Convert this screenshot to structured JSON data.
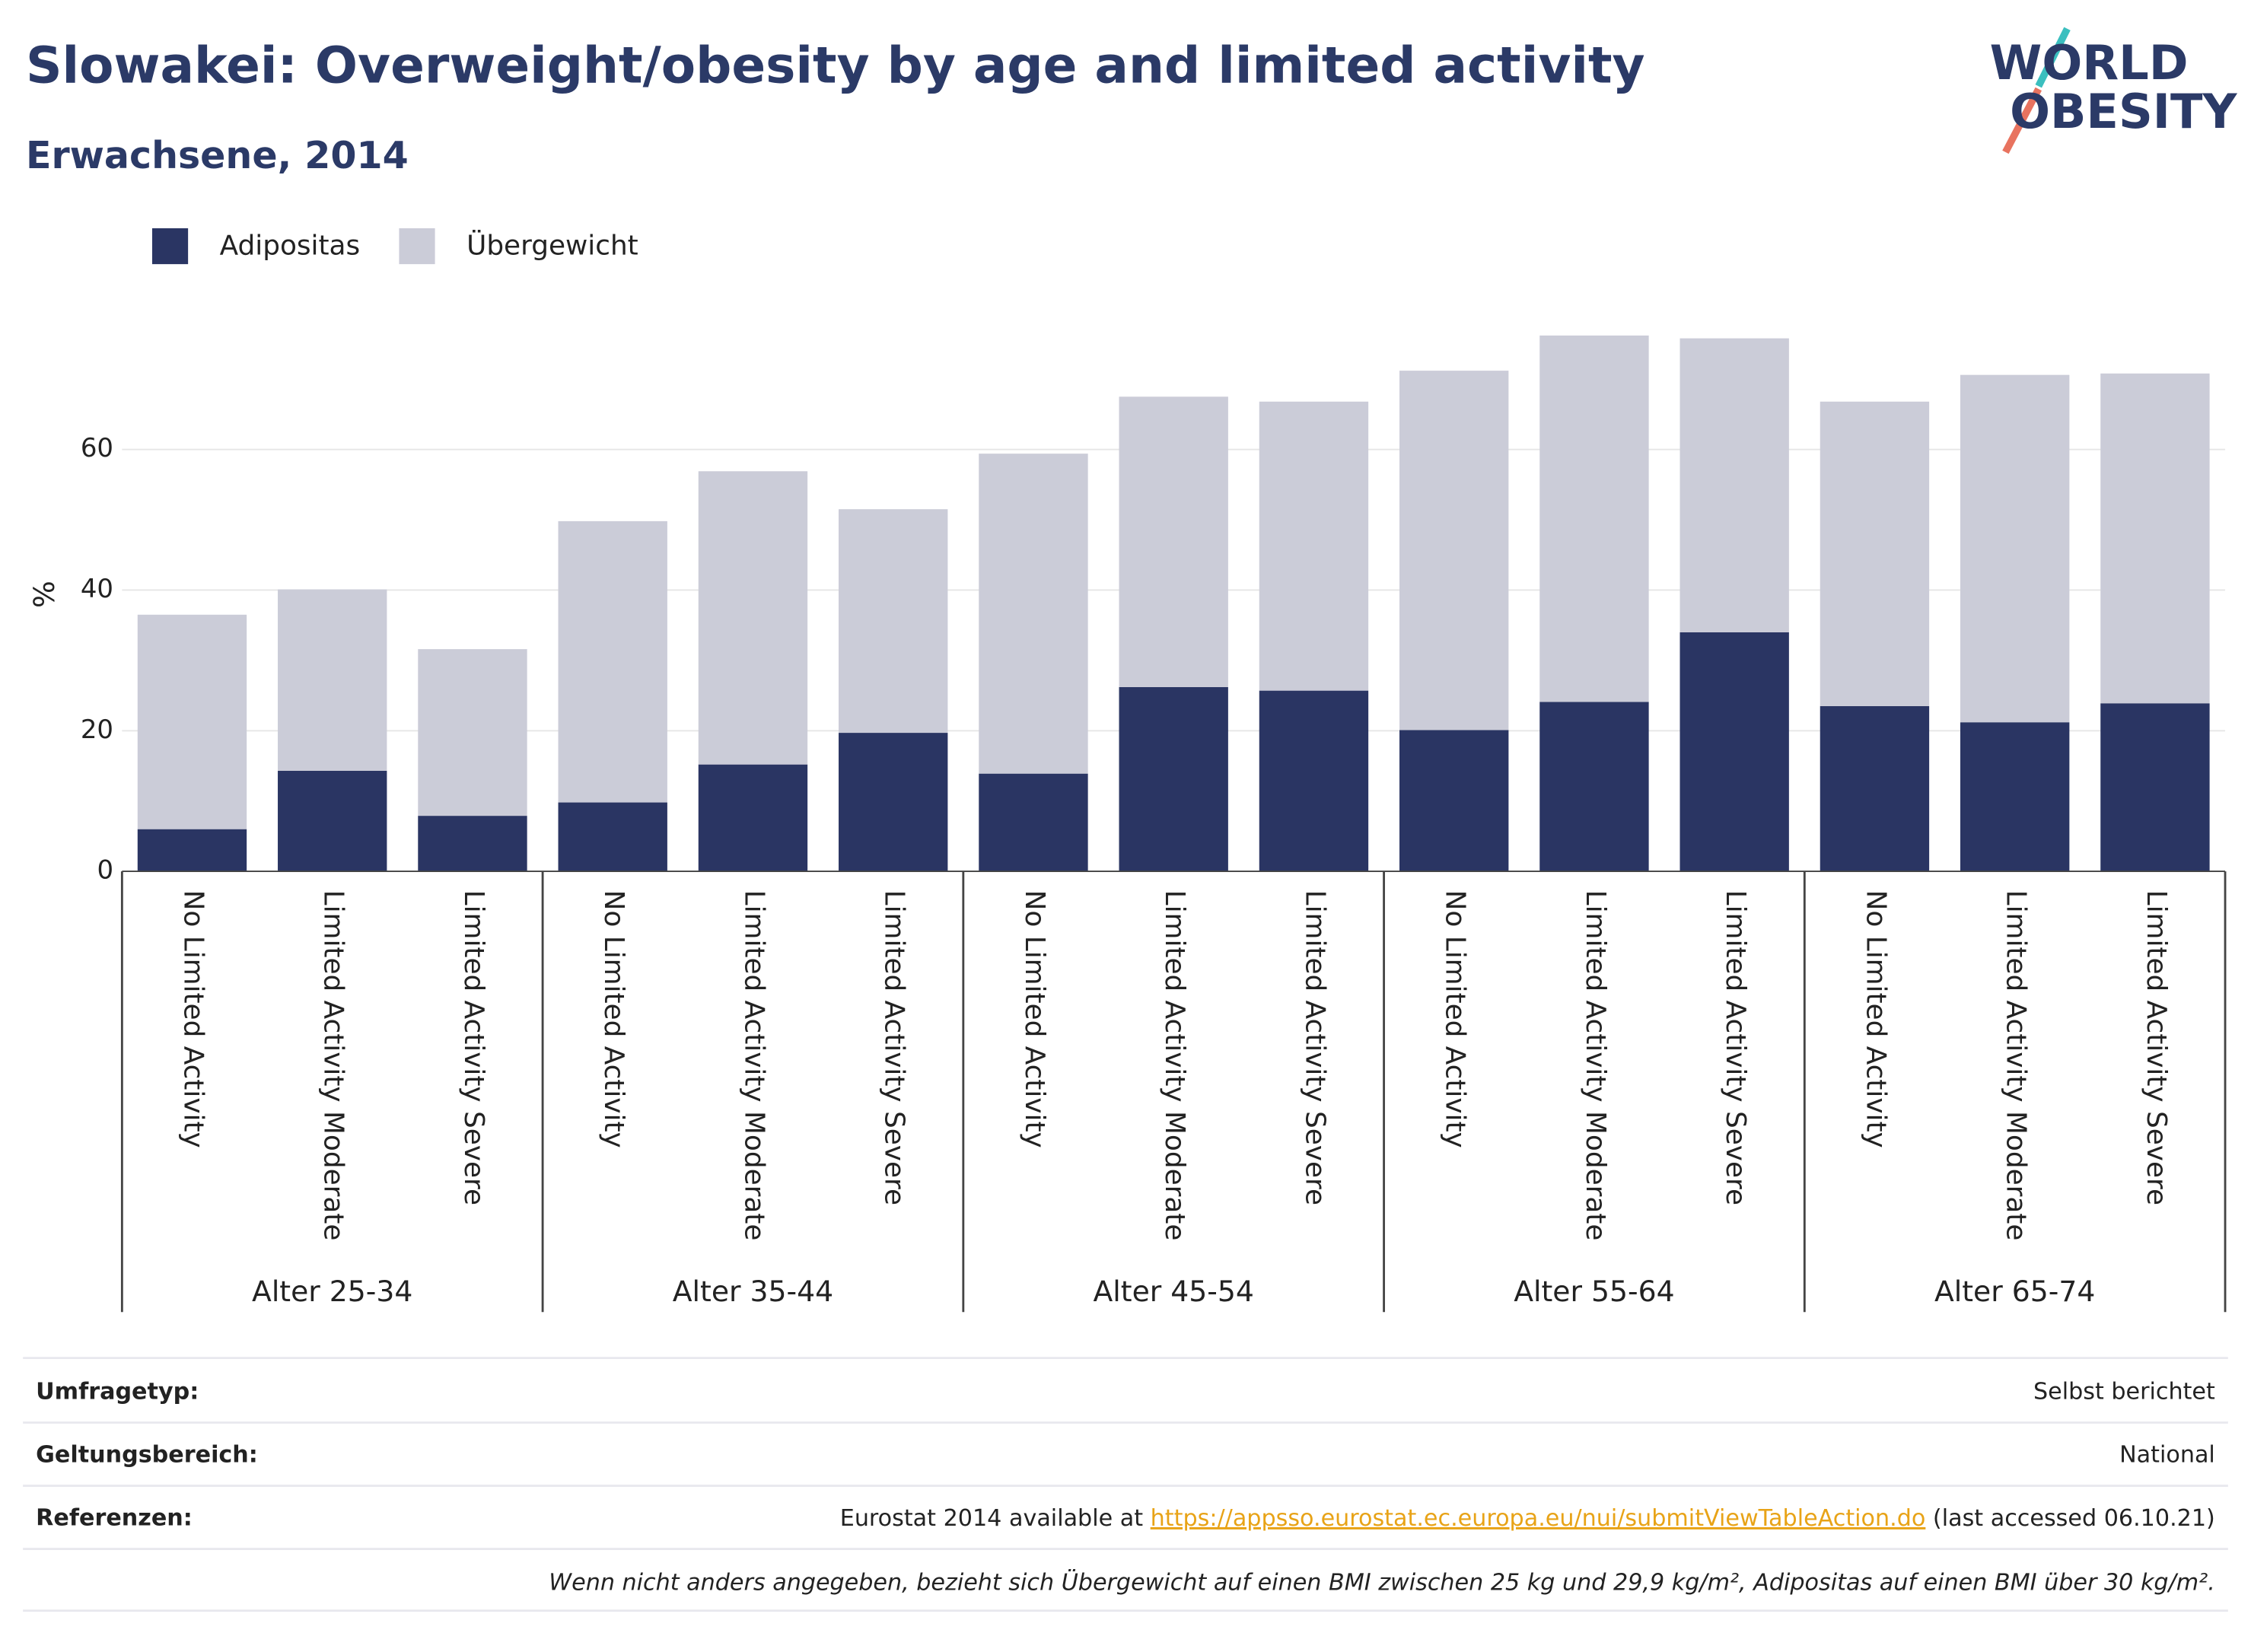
{
  "chart_data": {
    "type": "stacked_bar",
    "title": "Slowakei: Overweight/obesity by age and limited activity",
    "subtitle": "Erwachsene, 2014",
    "y_label": "%",
    "categories": [
      "No Limited Activity",
      "Limited Activity Moderate",
      "Limited Activity Severe",
      "No Limited Activity",
      "Limited Activity Moderate",
      "Limited Activity Severe",
      "No Limited Activity",
      "Limited Activity Moderate",
      "Limited Activity Severe",
      "No Limited Activity",
      "Limited Activity Moderate",
      "Limited Activity Severe",
      "No Limited Activity",
      "Limited Activity Moderate",
      "Limited Activity Severe"
    ],
    "groups": [
      "Alter 25-34",
      "Alter 35-44",
      "Alter 45-54",
      "Alter 55-64",
      "Alter 65-74"
    ],
    "series": [
      {
        "name": "Adipositas",
        "color": "#2a3563",
        "values": [
          6.0,
          14.3,
          7.9,
          9.8,
          15.2,
          19.7,
          13.9,
          26.2,
          25.7,
          20.1,
          24.1,
          34.0,
          23.5,
          21.2,
          23.9
        ]
      },
      {
        "name": "Übergewicht",
        "color": "#cbccd8",
        "values": [
          30.5,
          25.8,
          23.7,
          40.0,
          41.7,
          31.8,
          45.5,
          41.3,
          41.1,
          51.1,
          52.1,
          41.8,
          43.3,
          49.4,
          46.9
        ]
      }
    ],
    "ylim": [
      0,
      79
    ],
    "yticks": [
      0,
      20,
      40,
      60
    ],
    "grid": true,
    "legend": "top-left"
  },
  "logo": {
    "line1": "WORLD",
    "line2": "OBESITY"
  },
  "footer": {
    "rows": [
      {
        "label": "Umfragetyp:",
        "value": "Selbst berichtet"
      },
      {
        "label": "Geltungsbereich:",
        "value": "National"
      }
    ],
    "reference": {
      "label": "Referenzen:",
      "before": "Eurostat 2014 available at ",
      "link": "https://appsso.eurostat.ec.europa.eu/nui/submitViewTableAction.do",
      "after": " (last accessed 06.10.21)"
    },
    "note": "Wenn nicht anders angegeben, bezieht sich Übergewicht auf einen BMI zwischen 25 kg und 29,9 kg/m², Adipositas auf einen BMI über 30 kg/m²."
  }
}
